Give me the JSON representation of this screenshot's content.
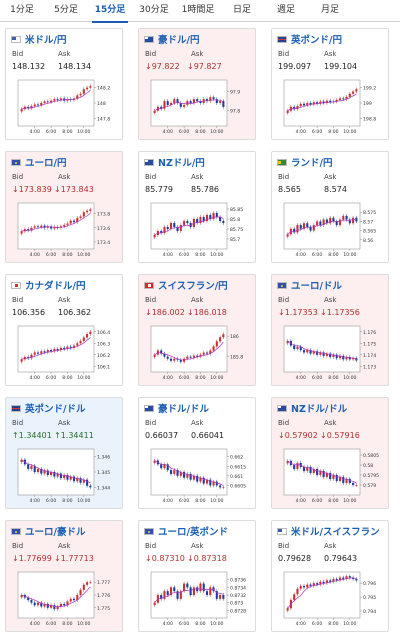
{
  "tabs": [
    {
      "label": "1分足",
      "active": false
    },
    {
      "label": "5分足",
      "active": false
    },
    {
      "label": "15分足",
      "active": true
    },
    {
      "label": "30分足",
      "active": false
    },
    {
      "label": "1時間足",
      "active": false
    },
    {
      "label": "日足",
      "active": false
    },
    {
      "label": "週足",
      "active": false
    },
    {
      "label": "月足",
      "active": false
    }
  ],
  "labels": {
    "bid": "Bid",
    "ask": "Ask"
  },
  "x_ticks": [
    "4:00",
    "6:00",
    "8:00",
    "10:00"
  ],
  "colors": {
    "up_candle": "#c83232",
    "down_candle": "#1c3c9c",
    "ma_line": "#b030c0",
    "pink_bg": "#fdeff0",
    "blue_bg": "#eaf3fc",
    "link": "#1a5fb4"
  },
  "cards": [
    {
      "title": "米ドル/円",
      "flag": "us",
      "bg": "white",
      "bid": "148.132",
      "ask": "148.134",
      "dir": "",
      "chart_data": {
        "type": "candlestick",
        "y_ticks": [
          "148.2",
          "148",
          "147.8"
        ],
        "ylim": [
          147.7,
          148.3
        ],
        "close": [
          147.92,
          147.95,
          147.93,
          147.96,
          147.98,
          147.97,
          148.0,
          148.02,
          148.01,
          148.03,
          148.05,
          148.04,
          148.06,
          148.03,
          148.05,
          148.04,
          148.06,
          148.1,
          148.12,
          148.18,
          148.2,
          148.22
        ]
      }
    },
    {
      "title": "豪ドル/円",
      "flag": "au",
      "bg": "pink",
      "bid": "97.822",
      "ask": "97.827",
      "dir": "down",
      "chart_data": {
        "type": "candlestick",
        "y_ticks": [
          "97.9",
          "97.8"
        ],
        "ylim": [
          97.72,
          97.96
        ],
        "close": [
          97.8,
          97.82,
          97.81,
          97.85,
          97.83,
          97.84,
          97.86,
          97.84,
          97.82,
          97.83,
          97.85,
          97.84,
          97.86,
          97.85,
          97.84,
          97.86,
          97.85,
          97.87,
          97.86,
          97.84,
          97.85,
          97.82
        ]
      }
    },
    {
      "title": "英ポンド/円",
      "flag": "gb",
      "bg": "white",
      "bid": "199.097",
      "ask": "199.104",
      "dir": "",
      "chart_data": {
        "type": "candlestick",
        "y_ticks": [
          "199.2",
          "199",
          "198.8"
        ],
        "ylim": [
          198.7,
          199.3
        ],
        "close": [
          198.9,
          198.95,
          198.92,
          198.96,
          198.99,
          198.97,
          199.0,
          198.98,
          199.01,
          198.99,
          199.02,
          199.0,
          199.03,
          199.01,
          199.02,
          199.04,
          199.06,
          199.05,
          199.08,
          199.12,
          199.15,
          199.18
        ]
      }
    },
    {
      "title": "ユーロ/円",
      "flag": "eu",
      "bg": "pink",
      "bid": "173.839",
      "ask": "173.843",
      "dir": "down",
      "chart_data": {
        "type": "candlestick",
        "y_ticks": [
          "173.8",
          "173.6",
          "173.4"
        ],
        "ylim": [
          173.3,
          173.95
        ],
        "close": [
          173.55,
          173.58,
          173.56,
          173.6,
          173.62,
          173.61,
          173.63,
          173.6,
          173.62,
          173.59,
          173.61,
          173.6,
          173.62,
          173.64,
          173.66,
          173.7,
          173.68,
          173.74,
          173.76,
          173.82,
          173.84,
          173.86
        ]
      }
    },
    {
      "title": "NZドル/円",
      "flag": "nz",
      "bg": "white",
      "bid": "85.779",
      "ask": "85.786",
      "dir": "",
      "chart_data": {
        "type": "candlestick",
        "y_ticks": [
          "85.85",
          "85.8",
          "85.75",
          "85.7"
        ],
        "ylim": [
          85.65,
          85.88
        ],
        "close": [
          85.72,
          85.74,
          85.73,
          85.76,
          85.75,
          85.78,
          85.76,
          85.74,
          85.77,
          85.79,
          85.78,
          85.76,
          85.8,
          85.78,
          85.81,
          85.79,
          85.82,
          85.8,
          85.83,
          85.81,
          85.79,
          85.78
        ]
      }
    },
    {
      "title": "ランド/円",
      "flag": "za",
      "bg": "white",
      "bid": "8.565",
      "ask": "8.574",
      "dir": "",
      "chart_data": {
        "type": "candlestick",
        "y_ticks": [
          "8.575",
          "8.57",
          "8.565",
          "8.56"
        ],
        "ylim": [
          8.555,
          8.58
        ],
        "close": [
          8.563,
          8.566,
          8.564,
          8.568,
          8.566,
          8.569,
          8.567,
          8.565,
          8.568,
          8.57,
          8.568,
          8.571,
          8.569,
          8.572,
          8.57,
          8.568,
          8.571,
          8.573,
          8.571,
          8.569,
          8.572,
          8.57
        ]
      }
    },
    {
      "title": "カナダドル/円",
      "flag": "ca",
      "bg": "white",
      "bid": "106.356",
      "ask": "106.362",
      "dir": "",
      "chart_data": {
        "type": "candlestick",
        "y_ticks": [
          "106.4",
          "106.3",
          "106.2",
          "106.1"
        ],
        "ylim": [
          106.05,
          106.45
        ],
        "close": [
          106.16,
          106.18,
          106.17,
          106.2,
          106.22,
          106.21,
          106.23,
          106.22,
          106.24,
          106.23,
          106.25,
          106.24,
          106.26,
          106.25,
          106.27,
          106.26,
          106.28,
          106.3,
          106.32,
          106.35,
          106.38,
          106.4
        ]
      }
    },
    {
      "title": "スイスフラン/円",
      "flag": "ch",
      "bg": "pink",
      "bid": "186.002",
      "ask": "186.018",
      "dir": "down",
      "chart_data": {
        "type": "candlestick",
        "y_ticks": [
          "186",
          "185.8"
        ],
        "ylim": [
          185.65,
          186.1
        ],
        "close": [
          185.82,
          185.86,
          185.83,
          185.8,
          185.78,
          185.76,
          185.78,
          185.77,
          185.75,
          185.78,
          185.8,
          185.79,
          185.81,
          185.8,
          185.82,
          185.84,
          185.83,
          185.86,
          185.9,
          185.95,
          185.99,
          186.02
        ]
      }
    },
    {
      "title": "ユーロ/ドル",
      "flag": "eu",
      "bg": "pink",
      "bid": "1.17353",
      "ask": "1.17356",
      "dir": "down",
      "chart_data": {
        "type": "candlestick",
        "y_ticks": [
          "1.176",
          "1.175",
          "1.174",
          "1.173"
        ],
        "ylim": [
          1.1725,
          1.1765
        ],
        "close": [
          1.1752,
          1.1748,
          1.1745,
          1.1747,
          1.1744,
          1.1742,
          1.1744,
          1.1741,
          1.1743,
          1.174,
          1.1742,
          1.1739,
          1.1741,
          1.1738,
          1.174,
          1.1737,
          1.1739,
          1.1736,
          1.1738,
          1.1736,
          1.1737,
          1.1735
        ]
      }
    },
    {
      "title": "英ポンド/ドル",
      "flag": "gb",
      "bg": "blue",
      "bid": "1.34401",
      "ask": "1.34411",
      "dir": "up",
      "chart_data": {
        "type": "candlestick",
        "y_ticks": [
          "1.346",
          "1.345",
          "1.344"
        ],
        "ylim": [
          1.3435,
          1.3465
        ],
        "close": [
          1.3458,
          1.3455,
          1.3452,
          1.3454,
          1.345,
          1.3452,
          1.3449,
          1.3451,
          1.3448,
          1.345,
          1.3447,
          1.3449,
          1.3446,
          1.3448,
          1.3445,
          1.3447,
          1.3444,
          1.3446,
          1.3443,
          1.3445,
          1.3441,
          1.344
        ]
      }
    },
    {
      "title": "豪ドル/ドル",
      "flag": "au",
      "bg": "white",
      "bid": "0.66037",
      "ask": "0.66041",
      "dir": "",
      "chart_data": {
        "type": "candlestick",
        "y_ticks": [
          "0.662",
          "0.6615",
          "0.661",
          "0.6605"
        ],
        "ylim": [
          0.66,
          0.6624
        ],
        "close": [
          0.6618,
          0.6616,
          0.6614,
          0.6616,
          0.6613,
          0.6611,
          0.6613,
          0.661,
          0.6612,
          0.6609,
          0.6611,
          0.6608,
          0.661,
          0.6607,
          0.6609,
          0.6606,
          0.6608,
          0.6605,
          0.6607,
          0.6605,
          0.6604,
          0.6604
        ]
      }
    },
    {
      "title": "NZドル/ドル",
      "flag": "nz",
      "bg": "pink",
      "bid": "0.57902",
      "ask": "0.57916",
      "dir": "down",
      "chart_data": {
        "type": "candlestick",
        "y_ticks": [
          "0.5805",
          "0.58",
          "0.5795",
          "0.579"
        ],
        "ylim": [
          0.5785,
          0.5808
        ],
        "close": [
          0.5802,
          0.58,
          0.5798,
          0.5801,
          0.5799,
          0.5797,
          0.5799,
          0.5796,
          0.5798,
          0.5795,
          0.5797,
          0.5794,
          0.5796,
          0.5793,
          0.5795,
          0.5792,
          0.5794,
          0.5791,
          0.5793,
          0.5791,
          0.579,
          0.579
        ]
      }
    },
    {
      "title": "ユーロ/豪ドル",
      "flag": "eu",
      "bg": "pink",
      "bid": "1.77699",
      "ask": "1.77713",
      "dir": "down",
      "chart_data": {
        "type": "candlestick",
        "y_ticks": [
          "1.777",
          "1.776",
          "1.775"
        ],
        "ylim": [
          1.7742,
          1.7778
        ],
        "close": [
          1.776,
          1.7758,
          1.7756,
          1.7754,
          1.7752,
          1.7754,
          1.7751,
          1.7753,
          1.775,
          1.7752,
          1.7749,
          1.7751,
          1.7753,
          1.7752,
          1.7755,
          1.7757,
          1.7756,
          1.776,
          1.7764,
          1.7768,
          1.777,
          1.777
        ]
      }
    },
    {
      "title": "ユーロ/英ポンド",
      "flag": "eu",
      "bg": "white",
      "bid": "0.87310",
      "ask": "0.87318",
      "dir": "down",
      "chart_data": {
        "type": "candlestick",
        "y_ticks": [
          "0.8736",
          "0.8734",
          "0.8732",
          "0.873",
          "0.8728"
        ],
        "ylim": [
          0.8726,
          0.8738
        ],
        "close": [
          0.873,
          0.8732,
          0.8731,
          0.8733,
          0.8732,
          0.8734,
          0.8733,
          0.8731,
          0.8733,
          0.8735,
          0.8734,
          0.8732,
          0.8734,
          0.8733,
          0.8735,
          0.8733,
          0.8732,
          0.8734,
          0.8733,
          0.8731,
          0.8732,
          0.8731
        ]
      }
    },
    {
      "title": "米ドル/スイスフラン",
      "flag": "us",
      "bg": "white",
      "bid": "0.79628",
      "ask": "0.79643",
      "dir": "",
      "chart_data": {
        "type": "candlestick",
        "y_ticks": [
          "0.796",
          "0.795",
          "0.794"
        ],
        "ylim": [
          0.7935,
          0.7968
        ],
        "close": [
          0.7942,
          0.7948,
          0.7952,
          0.7956,
          0.7958,
          0.7957,
          0.7959,
          0.7958,
          0.796,
          0.7959,
          0.7961,
          0.796,
          0.7962,
          0.7961,
          0.7963,
          0.7962,
          0.7964,
          0.7963,
          0.7965,
          0.7964,
          0.7963,
          0.7962
        ]
      }
    }
  ]
}
